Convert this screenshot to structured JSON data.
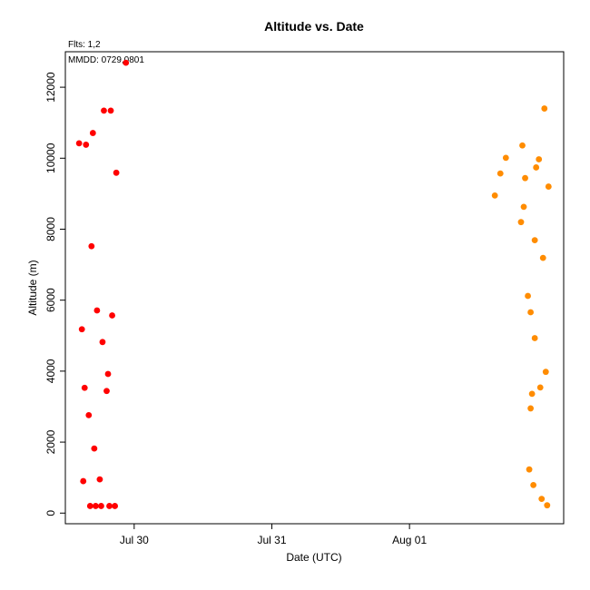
{
  "chart_data": {
    "type": "scatter",
    "title": "Altitude  vs. Date",
    "annotations": {
      "flts": "Flts: 1,2",
      "mmdd": "MMDD: 0729,0801"
    },
    "xlabel": "Date (UTC)",
    "ylabel": "Altitude (m)",
    "x_ticks": [
      {
        "label": "Jul 30",
        "value": 1.0
      },
      {
        "label": "Jul 31",
        "value": 2.0
      },
      {
        "label": "Aug 01",
        "value": 3.0
      }
    ],
    "y_ticks": [
      0,
      2000,
      4000,
      6000,
      8000,
      10000,
      12000
    ],
    "xlim": [
      0.5,
      4.12
    ],
    "ylim": [
      -300,
      13000
    ],
    "grid": false,
    "series": [
      {
        "color": "#ff0000",
        "points": [
          [
            0.6,
            10420
          ],
          [
            0.62,
            5180
          ],
          [
            0.63,
            900
          ],
          [
            0.64,
            3530
          ],
          [
            0.65,
            10380
          ],
          [
            0.67,
            2760
          ],
          [
            0.68,
            200
          ],
          [
            0.69,
            7520
          ],
          [
            0.7,
            10710
          ],
          [
            0.71,
            1820
          ],
          [
            0.72,
            200
          ],
          [
            0.73,
            5710
          ],
          [
            0.75,
            950
          ],
          [
            0.76,
            200
          ],
          [
            0.77,
            4820
          ],
          [
            0.78,
            11340
          ],
          [
            0.8,
            3440
          ],
          [
            0.81,
            3920
          ],
          [
            0.82,
            200
          ],
          [
            0.83,
            11340
          ],
          [
            0.84,
            5570
          ],
          [
            0.86,
            200
          ],
          [
            0.87,
            9590
          ],
          [
            0.94,
            12690
          ]
        ]
      },
      {
        "color": "#ff8c00",
        "points": [
          [
            3.62,
            8950
          ],
          [
            3.66,
            9570
          ],
          [
            3.7,
            10010
          ],
          [
            3.81,
            8200
          ],
          [
            3.82,
            10360
          ],
          [
            3.83,
            8630
          ],
          [
            3.84,
            9440
          ],
          [
            3.86,
            6120
          ],
          [
            3.87,
            1230
          ],
          [
            3.88,
            5660
          ],
          [
            3.88,
            2950
          ],
          [
            3.89,
            3360
          ],
          [
            3.9,
            790
          ],
          [
            3.91,
            4930
          ],
          [
            3.91,
            7690
          ],
          [
            3.92,
            9740
          ],
          [
            3.94,
            9970
          ],
          [
            3.95,
            3540
          ],
          [
            3.96,
            400
          ],
          [
            3.97,
            7190
          ],
          [
            3.98,
            11400
          ],
          [
            3.99,
            3980
          ],
          [
            4.0,
            220
          ],
          [
            4.01,
            9200
          ]
        ]
      }
    ]
  }
}
